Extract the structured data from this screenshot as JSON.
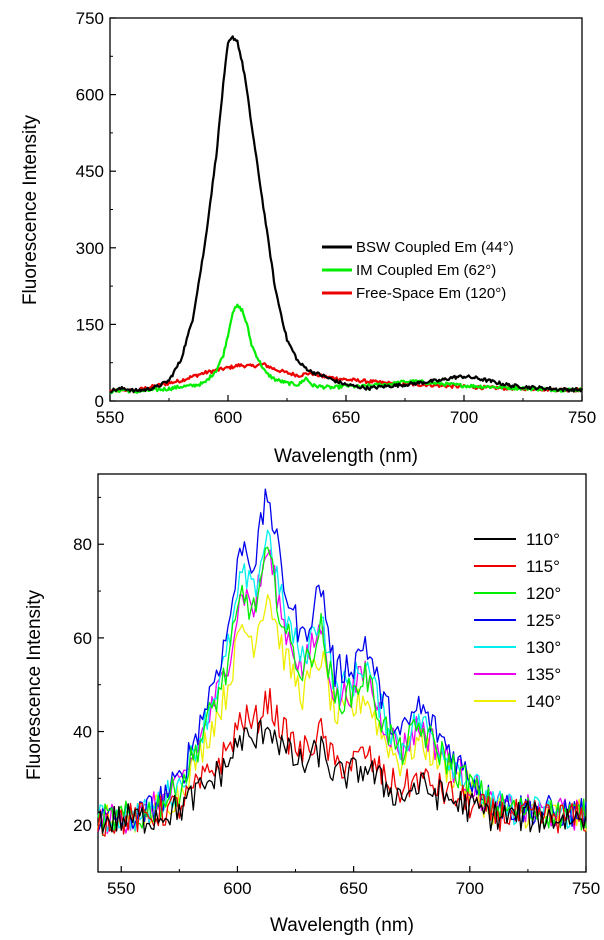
{
  "chart_data": [
    {
      "type": "line",
      "xlabel": "Wavelength (nm)",
      "ylabel": "Fluorescence Intensity",
      "xlim": [
        550,
        750
      ],
      "ylim": [
        0,
        750
      ],
      "xticks": [
        "550",
        "600",
        "650",
        "700",
        "750"
      ],
      "yticks": [
        "0",
        "150",
        "300",
        "450",
        "600",
        "750"
      ],
      "legend_position": "right",
      "series": [
        {
          "name": "BSW Coupled Em (44°)",
          "color": "#000000",
          "points": [
            [
              550,
              20
            ],
            [
              556,
              25
            ],
            [
              560,
              20
            ],
            [
              565,
              22
            ],
            [
              570,
              28
            ],
            [
              575,
              40
            ],
            [
              580,
              80
            ],
            [
              585,
              160
            ],
            [
              590,
              300
            ],
            [
              595,
              480
            ],
            [
              598,
              620
            ],
            [
              600,
              700
            ],
            [
              602,
              712
            ],
            [
              604,
              705
            ],
            [
              607,
              640
            ],
            [
              610,
              540
            ],
            [
              615,
              380
            ],
            [
              620,
              220
            ],
            [
              625,
              120
            ],
            [
              630,
              75
            ],
            [
              635,
              58
            ],
            [
              640,
              50
            ],
            [
              645,
              40
            ],
            [
              650,
              32
            ],
            [
              655,
              28
            ],
            [
              660,
              25
            ],
            [
              665,
              28
            ],
            [
              670,
              30
            ],
            [
              675,
              32
            ],
            [
              680,
              35
            ],
            [
              685,
              38
            ],
            [
              690,
              40
            ],
            [
              695,
              46
            ],
            [
              700,
              48
            ],
            [
              705,
              45
            ],
            [
              710,
              40
            ],
            [
              715,
              35
            ],
            [
              720,
              30
            ],
            [
              725,
              28
            ],
            [
              730,
              26
            ],
            [
              735,
              25
            ],
            [
              740,
              23
            ],
            [
              745,
              22
            ],
            [
              750,
              22
            ]
          ]
        },
        {
          "name": "IM Coupled Em (62°)",
          "color": "#00ee00",
          "points": [
            [
              550,
              18
            ],
            [
              556,
              22
            ],
            [
              560,
              18
            ],
            [
              565,
              20
            ],
            [
              570,
              22
            ],
            [
              575,
              24
            ],
            [
              580,
              28
            ],
            [
              585,
              30
            ],
            [
              590,
              35
            ],
            [
              595,
              60
            ],
            [
              598,
              90
            ],
            [
              600,
              130
            ],
            [
              602,
              175
            ],
            [
              604,
              186
            ],
            [
              606,
              178
            ],
            [
              608,
              150
            ],
            [
              610,
              110
            ],
            [
              613,
              80
            ],
            [
              616,
              55
            ],
            [
              620,
              42
            ],
            [
              625,
              35
            ],
            [
              630,
              32
            ],
            [
              633,
              45
            ],
            [
              636,
              30
            ],
            [
              640,
              28
            ],
            [
              645,
              26
            ],
            [
              650,
              30
            ],
            [
              655,
              28
            ],
            [
              660,
              30
            ],
            [
              665,
              32
            ],
            [
              670,
              34
            ],
            [
              675,
              38
            ],
            [
              680,
              38
            ],
            [
              685,
              36
            ],
            [
              690,
              34
            ],
            [
              695,
              32
            ],
            [
              700,
              30
            ],
            [
              710,
              28
            ],
            [
              720,
              26
            ],
            [
              730,
              24
            ],
            [
              740,
              22
            ],
            [
              750,
              22
            ]
          ]
        },
        {
          "name": "Free-Space Em (120°)",
          "color": "#ee0000",
          "points": [
            [
              550,
              20
            ],
            [
              556,
              22
            ],
            [
              560,
              20
            ],
            [
              565,
              25
            ],
            [
              570,
              30
            ],
            [
              575,
              35
            ],
            [
              580,
              40
            ],
            [
              585,
              48
            ],
            [
              590,
              55
            ],
            [
              595,
              60
            ],
            [
              600,
              65
            ],
            [
              605,
              70
            ],
            [
              610,
              68
            ],
            [
              615,
              72
            ],
            [
              620,
              62
            ],
            [
              625,
              55
            ],
            [
              630,
              50
            ],
            [
              635,
              55
            ],
            [
              640,
              48
            ],
            [
              645,
              45
            ],
            [
              650,
              42
            ],
            [
              655,
              40
            ],
            [
              660,
              38
            ],
            [
              665,
              36
            ],
            [
              670,
              34
            ],
            [
              675,
              33
            ],
            [
              680,
              32
            ],
            [
              685,
              32
            ],
            [
              690,
              30
            ],
            [
              695,
              29
            ],
            [
              700,
              28
            ],
            [
              710,
              26
            ],
            [
              720,
              25
            ],
            [
              730,
              24
            ],
            [
              740,
              22
            ],
            [
              750,
              22
            ]
          ]
        }
      ]
    },
    {
      "type": "line",
      "xlabel": "Wavelength (nm)",
      "ylabel": "Fluorescence Intensity",
      "xlim": [
        540,
        750
      ],
      "ylim": [
        10,
        95
      ],
      "xticks": [
        "550",
        "600",
        "650",
        "700",
        "750"
      ],
      "yticks": [
        "20",
        "40",
        "60",
        "80"
      ],
      "legend_position": "right",
      "series": [
        {
          "name": "110°",
          "color": "#000000",
          "peak": 42
        },
        {
          "name": "115°",
          "color": "#ee0000",
          "peak": 47
        },
        {
          "name": "120°",
          "color": "#00ee00",
          "peak": 78
        },
        {
          "name": "125°",
          "color": "#0000ee",
          "peak": 91
        },
        {
          "name": "130°",
          "color": "#00eeee",
          "peak": 83
        },
        {
          "name": "135°",
          "color": "#ee00ee",
          "peak": 79
        },
        {
          "name": "140°",
          "color": "#eeee00",
          "peak": 70
        }
      ]
    }
  ]
}
